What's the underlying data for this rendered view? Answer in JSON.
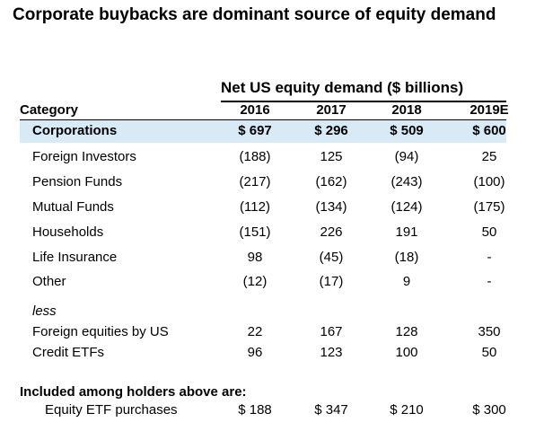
{
  "title": "Corporate buybacks are dominant source of equity demand",
  "table": {
    "super_header": "Net US equity demand ($ billions)",
    "category_header": "Category",
    "years": [
      "2016",
      "2017",
      "2018",
      "2019E"
    ],
    "rows": [
      {
        "label": "Corporations",
        "values": [
          "$ 697",
          "$ 296",
          "$ 509",
          "$ 600"
        ]
      },
      {
        "label": "Foreign Investors",
        "values": [
          "(188)",
          "125",
          "(94)",
          "25"
        ]
      },
      {
        "label": "Pension Funds",
        "values": [
          "(217)",
          "(162)",
          "(243)",
          "(100)"
        ]
      },
      {
        "label": "Mutual Funds",
        "values": [
          "(112)",
          "(134)",
          "(124)",
          "(175)"
        ]
      },
      {
        "label": "Households",
        "values": [
          "(151)",
          "226",
          "191",
          "50"
        ]
      },
      {
        "label": "Life Insurance",
        "values": [
          "98",
          "(45)",
          "(18)",
          "-"
        ]
      },
      {
        "label": "Other",
        "values": [
          "(12)",
          "(17)",
          "9",
          "-"
        ]
      }
    ],
    "less_label": "less",
    "less_rows": [
      {
        "label": "Foreign equities by US",
        "values": [
          "22",
          "167",
          "128",
          "350"
        ]
      },
      {
        "label": "Credit ETFs",
        "values": [
          "96",
          "123",
          "100",
          "50"
        ]
      }
    ],
    "included_label": "Included among holders above are:",
    "included_rows": [
      {
        "label": "Equity ETF purchases",
        "values": [
          "$ 188",
          "$ 347",
          "$ 210",
          "$ 300"
        ]
      }
    ],
    "highlight_color": "#d9eaf7"
  }
}
